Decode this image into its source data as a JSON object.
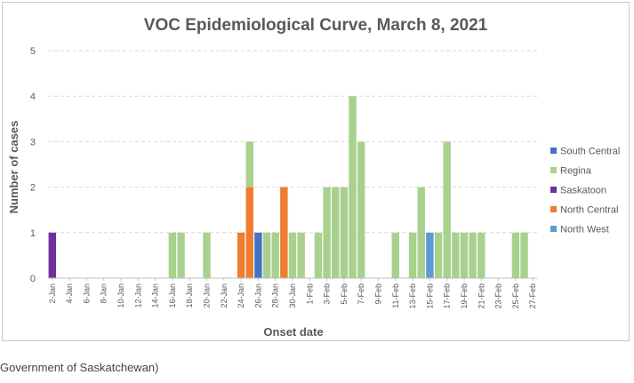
{
  "chart_data": {
    "type": "bar",
    "stacked": true,
    "title": "VOC Epidemiological Curve, March 8, 2021",
    "xlabel": "Onset date",
    "ylabel": "Number of cases",
    "ylim": [
      0,
      5
    ],
    "yticks": [
      0,
      1,
      2,
      3,
      4,
      5
    ],
    "grid": "horizontal dashed",
    "legend_position": "right",
    "categories": [
      "2-Jan",
      "3-Jan",
      "4-Jan",
      "5-Jan",
      "6-Jan",
      "7-Jan",
      "8-Jan",
      "9-Jan",
      "10-Jan",
      "11-Jan",
      "12-Jan",
      "13-Jan",
      "14-Jan",
      "15-Jan",
      "16-Jan",
      "17-Jan",
      "18-Jan",
      "19-Jan",
      "20-Jan",
      "21-Jan",
      "22-Jan",
      "23-Jan",
      "24-Jan",
      "25-Jan",
      "26-Jan",
      "27-Jan",
      "28-Jan",
      "29-Jan",
      "30-Jan",
      "31-Jan",
      "1-Feb",
      "2-Feb",
      "3-Feb",
      "4-Feb",
      "5-Feb",
      "6-Feb",
      "7-Feb",
      "8-Feb",
      "9-Feb",
      "10-Feb",
      "11-Feb",
      "12-Feb",
      "13-Feb",
      "14-Feb",
      "15-Feb",
      "16-Feb",
      "17-Feb",
      "18-Feb",
      "19-Feb",
      "20-Feb",
      "21-Feb",
      "22-Feb",
      "23-Feb",
      "24-Feb",
      "25-Feb",
      "26-Feb",
      "27-Feb"
    ],
    "xtick_labels": [
      "2-Jan",
      "4-Jan",
      "6-Jan",
      "8-Jan",
      "10-Jan",
      "12-Jan",
      "14-Jan",
      "16-Jan",
      "18-Jan",
      "20-Jan",
      "22-Jan",
      "24-Jan",
      "26-Jan",
      "28-Jan",
      "30-Jan",
      "1-Feb",
      "3-Feb",
      "5-Feb",
      "7-Feb",
      "9-Feb",
      "11-Feb",
      "13-Feb",
      "15-Feb",
      "17-Feb",
      "19-Feb",
      "21-Feb",
      "23-Feb",
      "25-Feb",
      "27-Feb"
    ],
    "series": [
      {
        "name": "Saskatoon",
        "color": "#7030a0",
        "values": [
          1,
          0,
          0,
          0,
          0,
          0,
          0,
          0,
          0,
          0,
          0,
          0,
          0,
          0,
          0,
          0,
          0,
          0,
          0,
          0,
          0,
          0,
          0,
          0,
          0,
          0,
          0,
          0,
          0,
          0,
          0,
          0,
          0,
          0,
          0,
          0,
          0,
          0,
          0,
          0,
          0,
          0,
          0,
          0,
          0,
          0,
          0,
          0,
          0,
          0,
          0,
          0,
          0,
          0,
          0,
          0,
          0
        ]
      },
      {
        "name": "South Central",
        "color": "#4472c4",
        "values": [
          0,
          0,
          0,
          0,
          0,
          0,
          0,
          0,
          0,
          0,
          0,
          0,
          0,
          0,
          0,
          0,
          0,
          0,
          0,
          0,
          0,
          0,
          0,
          0,
          1,
          0,
          0,
          0,
          0,
          0,
          0,
          0,
          0,
          0,
          0,
          0,
          0,
          0,
          0,
          0,
          0,
          0,
          0,
          0,
          0,
          0,
          0,
          0,
          0,
          0,
          0,
          0,
          0,
          0,
          0,
          0,
          0
        ]
      },
      {
        "name": "North West",
        "color": "#5b9bd5",
        "values": [
          0,
          0,
          0,
          0,
          0,
          0,
          0,
          0,
          0,
          0,
          0,
          0,
          0,
          0,
          0,
          0,
          0,
          0,
          0,
          0,
          0,
          0,
          0,
          0,
          0,
          0,
          0,
          0,
          0,
          0,
          0,
          0,
          0,
          0,
          0,
          0,
          0,
          0,
          0,
          0,
          0,
          0,
          0,
          0,
          1,
          0,
          0,
          0,
          0,
          0,
          0,
          0,
          0,
          0,
          0,
          0,
          0
        ]
      },
      {
        "name": "North Central",
        "color": "#ed7d31",
        "values": [
          0,
          0,
          0,
          0,
          0,
          0,
          0,
          0,
          0,
          0,
          0,
          0,
          0,
          0,
          0,
          0,
          0,
          0,
          0,
          0,
          0,
          0,
          1,
          2,
          0,
          0,
          0,
          2,
          0,
          0,
          0,
          0,
          0,
          0,
          0,
          0,
          0,
          0,
          0,
          0,
          0,
          0,
          0,
          0,
          0,
          0,
          0,
          0,
          0,
          0,
          0,
          0,
          0,
          0,
          0,
          0,
          0
        ]
      },
      {
        "name": "Regina",
        "color": "#a9d18e",
        "values": [
          0,
          0,
          0,
          0,
          0,
          0,
          0,
          0,
          0,
          0,
          0,
          0,
          0,
          0,
          1,
          1,
          0,
          0,
          1,
          0,
          0,
          0,
          0,
          1,
          0,
          1,
          1,
          0,
          1,
          1,
          0,
          1,
          2,
          2,
          2,
          4,
          3,
          0,
          0,
          0,
          1,
          0,
          1,
          2,
          0,
          1,
          3,
          1,
          1,
          1,
          1,
          0,
          0,
          0,
          1,
          1,
          0
        ]
      }
    ],
    "legend_order": [
      "South Central",
      "Regina",
      "Saskatoon",
      "North Central",
      "North West"
    ]
  },
  "caption": "Government of Saskatchewan)"
}
